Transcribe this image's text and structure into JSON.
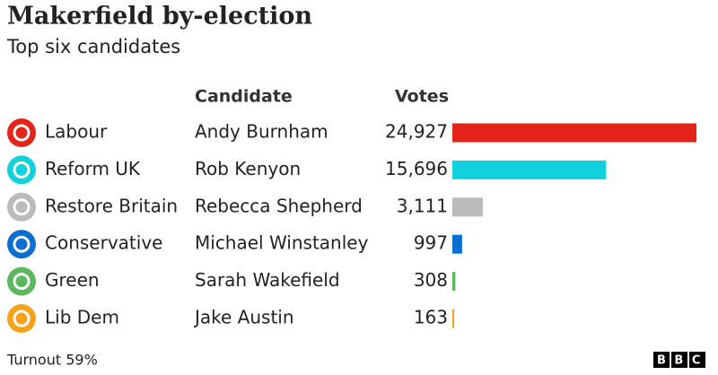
{
  "chart_data": {
    "type": "bar",
    "orientation": "horizontal",
    "title": "Makerfield by-election",
    "subtitle": "Top six candidates",
    "headers": [
      "Candidate",
      "Votes"
    ],
    "categories": [
      "Labour",
      "Reform UK",
      "Restore Britain",
      "Conservative",
      "Green",
      "Lib Dem"
    ],
    "candidates": [
      "Andy Burnham",
      "Rob Kenyon",
      "Rebecca Shepherd",
      "Michael Winstanley",
      "Sarah Wakefield",
      "Jake Austin"
    ],
    "values": [
      24927,
      15696,
      3111,
      997,
      308,
      163
    ],
    "value_labels": [
      "24,927",
      "15,696",
      "3,111",
      "997",
      "308",
      "163"
    ],
    "colors": [
      "#e4231a",
      "#12d0dc",
      "#bbbbbb",
      "#0a6fd0",
      "#5cb85c",
      "#f7a21b"
    ],
    "note": "Turnout 59%",
    "source": "BBC"
  }
}
